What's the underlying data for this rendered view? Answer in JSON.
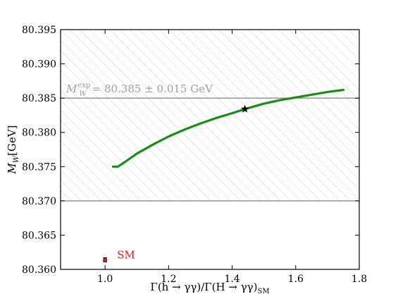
{
  "chart_data": {
    "type": "line",
    "x_axis": {
      "label_text": "Γ(h → γγ)/Γ(H → γγ)",
      "label_subscript": "SM",
      "range": [
        0.86,
        1.8
      ],
      "ticks": [
        1.0,
        1.2,
        1.4,
        1.6,
        1.8
      ],
      "tick_labels": [
        "1.0",
        "1.2",
        "1.4",
        "1.6",
        "1.8"
      ]
    },
    "y_axis": {
      "label_text": "M",
      "label_subscript": "W",
      "label_unit": "[GeV]",
      "range": [
        80.36,
        80.395
      ],
      "ticks": [
        80.36,
        80.365,
        80.37,
        80.375,
        80.38,
        80.385,
        80.39,
        80.395
      ],
      "tick_labels": [
        "80.360",
        "80.365",
        "80.370",
        "80.375",
        "80.380",
        "80.385",
        "80.390",
        "80.395"
      ]
    },
    "grid": false,
    "excluded_region_hatched": [
      80.37,
      80.395
    ],
    "horizontal_lines": [
      80.385,
      80.37
    ],
    "band_label": {
      "prefix": "M",
      "subscript": "W",
      "superscript": "exp",
      "value_text": "= 80.385 ± 0.015 GeV"
    },
    "series": [
      {
        "color": "#1a8c1a",
        "x": [
          1.025,
          1.04,
          1.06,
          1.1,
          1.15,
          1.2,
          1.25,
          1.3,
          1.35,
          1.4,
          1.44,
          1.5,
          1.55,
          1.6,
          1.65,
          1.7,
          1.75
        ],
        "y": [
          80.375,
          80.375,
          80.3756,
          80.3769,
          80.3782,
          80.3794,
          80.3804,
          80.3813,
          80.3821,
          80.3828,
          80.3834,
          80.3842,
          80.3847,
          80.3851,
          80.3855,
          80.3859,
          80.3862
        ]
      }
    ],
    "marker_point": {
      "x": 1.44,
      "y": 80.3834,
      "symbol": "star",
      "color": "#000000"
    },
    "sm_point": {
      "label": "SM",
      "x": 1.0,
      "y": 80.3614,
      "yerr": 0.0003,
      "color": "#e02020"
    }
  }
}
